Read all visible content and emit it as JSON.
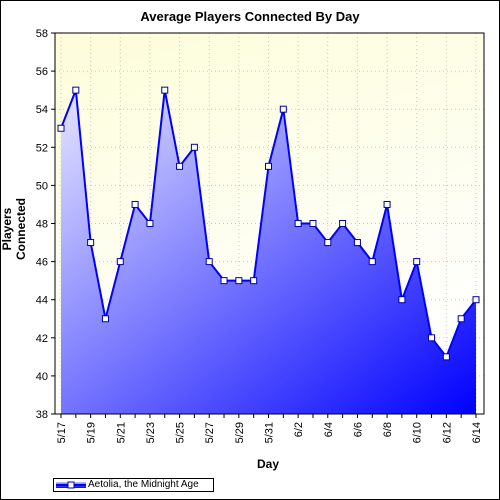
{
  "chart_data": {
    "type": "area",
    "title": "Average Players Connected By Day",
    "xlabel": "Day",
    "ylabel": "Players Connected",
    "ylim": [
      38,
      58
    ],
    "yticks": [
      38,
      40,
      42,
      44,
      46,
      48,
      50,
      52,
      54,
      56,
      58
    ],
    "grid": true,
    "legend_position": "bottom-left",
    "categories": [
      "5/17",
      "5/18",
      "5/19",
      "5/20",
      "5/21",
      "5/22",
      "5/23",
      "5/24",
      "5/25",
      "5/26",
      "5/27",
      "5/28",
      "5/29",
      "5/30",
      "5/31",
      "6/1",
      "6/2",
      "6/3",
      "6/4",
      "6/5",
      "6/6",
      "6/7",
      "6/8",
      "6/9",
      "6/10",
      "6/11",
      "6/12",
      "6/13",
      "6/14"
    ],
    "tick_labels": [
      "5/17",
      "5/19",
      "5/21",
      "5/23",
      "5/25",
      "5/27",
      "5/29",
      "5/31",
      "6/2",
      "6/4",
      "6/6",
      "6/8",
      "6/10",
      "6/12",
      "6/14"
    ],
    "series": [
      {
        "name": "Aetolia, the Midnight Age",
        "values": [
          53,
          55,
          47,
          43,
          46,
          49,
          48,
          55,
          51,
          52,
          46,
          45,
          45,
          45,
          51,
          54,
          48,
          48,
          47,
          48,
          47,
          46,
          49,
          44,
          46,
          42,
          41,
          43,
          44
        ]
      }
    ],
    "colors": {
      "line": "#0000ff",
      "fill_top": "#e6e6ff",
      "fill_bottom": "#0000ff",
      "plot_bg_top": "#fdfdda",
      "plot_bg_bottom": "#ffffff",
      "grid": "#c8c8c8"
    }
  },
  "legend": {
    "label": "Aetolia, the Midnight Age"
  }
}
